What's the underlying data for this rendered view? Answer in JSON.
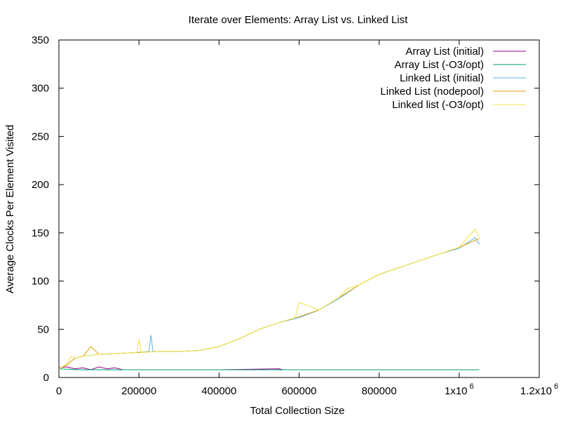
{
  "chart_data": {
    "type": "line",
    "title": "Iterate over Elements:  Array List vs. Linked List",
    "xlabel": "Total Collection Size",
    "ylabel": "Average Clocks Per Element Visited",
    "xlim": [
      0,
      1200000
    ],
    "ylim": [
      0,
      350
    ],
    "x_ticks": [
      {
        "value": 0,
        "label": "0"
      },
      {
        "value": 200000,
        "label": "200000"
      },
      {
        "value": 400000,
        "label": "400000"
      },
      {
        "value": 600000,
        "label": "600000"
      },
      {
        "value": 800000,
        "label": "800000"
      },
      {
        "value": 1000000,
        "label": "1x10",
        "exp": "6"
      },
      {
        "value": 1200000,
        "label": "1.2x10",
        "exp": "6"
      }
    ],
    "y_ticks": [
      0,
      50,
      100,
      150,
      200,
      250,
      300,
      350
    ],
    "grid": false,
    "legend_position": "top-right",
    "series": [
      {
        "name": "Array List (initial)",
        "color": "#94008a",
        "x": [
          0,
          20000,
          40000,
          60000,
          80000,
          100000,
          120000,
          140000,
          160000,
          200000,
          300000,
          400000,
          550000,
          560000,
          700000,
          800000,
          930000,
          1050000
        ],
        "y": [
          10,
          11,
          9,
          10,
          8,
          11,
          9,
          10,
          8,
          8,
          8,
          8,
          9,
          8,
          8,
          8,
          8,
          8
        ]
      },
      {
        "name": "Array List (-O3/opt)",
        "color": "#009e73",
        "x": [
          0,
          50000,
          200000,
          400000,
          600000,
          800000,
          1000000,
          1050000
        ],
        "y": [
          9,
          8,
          8,
          8,
          8,
          8,
          8,
          8
        ]
      },
      {
        "name": "Linked List (initial)",
        "color": "#56b4e9",
        "x": [
          0,
          20000,
          40000,
          60000,
          80000,
          100000,
          150000,
          200000,
          225000,
          230000,
          235000,
          250000,
          300000,
          350000,
          400000,
          450000,
          500000,
          550000,
          600000,
          650000,
          700000,
          750000,
          800000,
          850000,
          900000,
          950000,
          1000000,
          1040000,
          1050000
        ],
        "y": [
          9,
          13,
          20,
          22,
          23,
          24,
          25,
          26,
          27,
          44,
          27,
          27,
          27,
          28,
          32,
          40,
          50,
          57,
          62,
          70,
          82,
          96,
          107,
          114,
          121,
          128,
          134,
          145,
          138
        ]
      },
      {
        "name": "Linked List (nodepool)",
        "color": "#e69f00",
        "x": [
          0,
          20000,
          40000,
          60000,
          80000,
          100000,
          150000,
          200000,
          250000,
          300000,
          350000,
          400000,
          450000,
          500000,
          550000,
          600000,
          650000,
          700000,
          750000,
          800000,
          850000,
          900000,
          950000,
          1000000,
          1050000
        ],
        "y": [
          9,
          13,
          20,
          22,
          32,
          24,
          25,
          26,
          27,
          27,
          28,
          32,
          40,
          50,
          57,
          63,
          70,
          83,
          96,
          107,
          114,
          121,
          128,
          135,
          144
        ]
      },
      {
        "name": "Linked list (-O3/opt)",
        "color": "#f0e442",
        "x": [
          0,
          20000,
          30000,
          40000,
          60000,
          80000,
          100000,
          150000,
          195000,
          200000,
          205000,
          250000,
          300000,
          350000,
          400000,
          450000,
          500000,
          550000,
          590000,
          600000,
          650000,
          700000,
          720000,
          750000,
          800000,
          850000,
          900000,
          950000,
          1000000,
          1040000,
          1050000
        ],
        "y": [
          9,
          14,
          22,
          20,
          22,
          23,
          24,
          25,
          26,
          40,
          26,
          27,
          27,
          28,
          32,
          40,
          50,
          57,
          62,
          78,
          70,
          83,
          92,
          96,
          107,
          114,
          121,
          128,
          135,
          154,
          145
        ]
      }
    ]
  }
}
